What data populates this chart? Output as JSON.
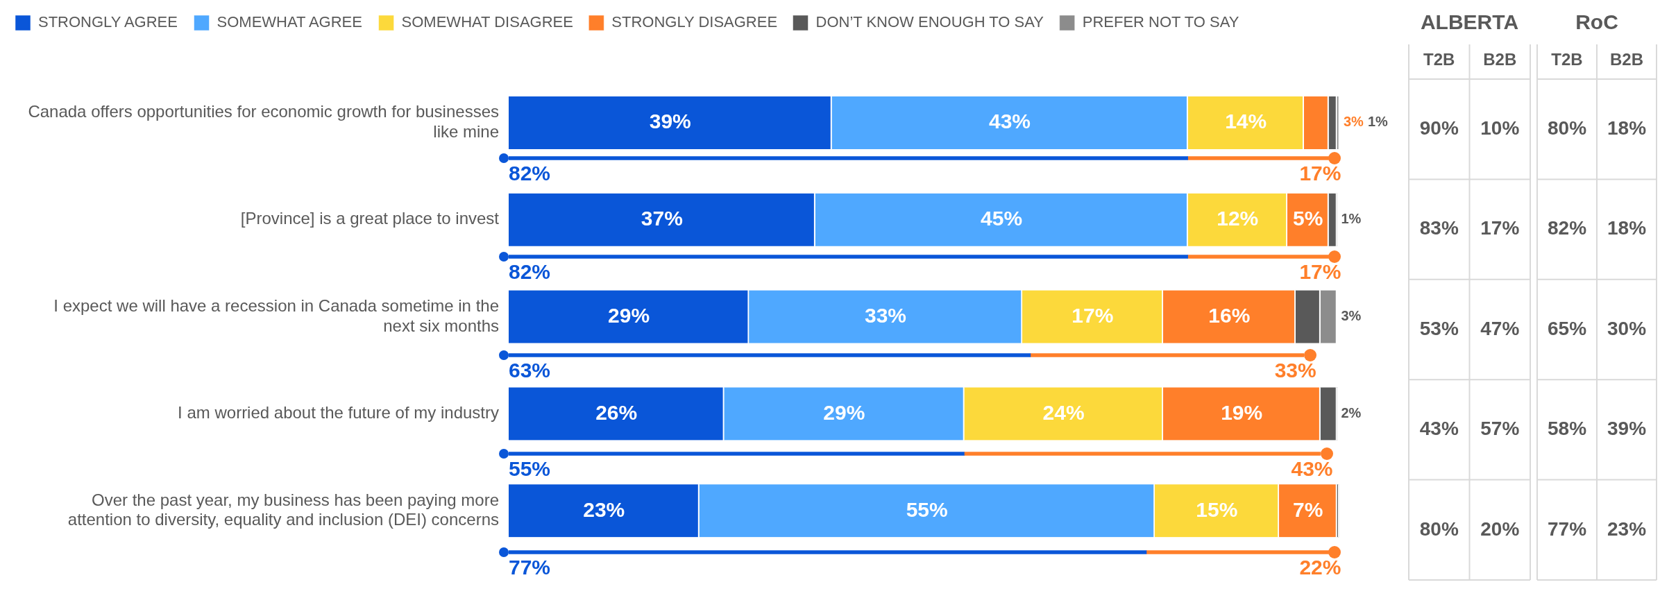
{
  "chart_data": [
    {
      "type": "bar",
      "orientation": "horizontal",
      "stacked": true,
      "legend": "top",
      "categories": [
        "Canada offers opportunities for economic growth for businesses like mine",
        "[Province] is a great place to invest",
        "I expect we will have a recession in Canada sometime in the next six months",
        "I am worried about the future of my industry",
        "Over the past year, my business has been paying more attention to diversity, equality and inclusion (DEI) concerns"
      ],
      "series": [
        {
          "name": "STRONGLY AGREE",
          "color": "#0a56d8",
          "values": [
            39,
            37,
            29,
            26,
            23
          ],
          "value_labels": [
            "39%",
            "37%",
            "29%",
            "26%",
            "23%"
          ]
        },
        {
          "name": "SOMEWHAT AGREE",
          "color": "#4fa8ff",
          "values": [
            43,
            45,
            33,
            29,
            55
          ],
          "value_labels": [
            "43%",
            "45%",
            "33%",
            "29%",
            "55%"
          ]
        },
        {
          "name": "SOMEWHAT DISAGREE",
          "color": "#fcd93b",
          "values": [
            14,
            12,
            17,
            24,
            15
          ],
          "value_labels": [
            "14%",
            "12%",
            "17%",
            "24%",
            "15%"
          ]
        },
        {
          "name": "STRONGLY DISAGREE",
          "color": "#ff7f2a",
          "values": [
            3,
            5,
            16,
            19,
            7
          ],
          "value_labels": [
            "3%",
            "5%",
            "16%",
            "19%",
            "7%"
          ]
        },
        {
          "name": "DON’T KNOW ENOUGH TO SAY",
          "color": "#595959",
          "values": [
            1,
            1,
            3,
            2,
            0.2
          ],
          "value_labels": [
            "1%",
            "1%",
            "3%",
            "2%",
            null
          ]
        },
        {
          "name": "PREFER NOT TO SAY",
          "color": "#8c8c8c",
          "values": [
            0.3,
            0,
            2,
            0,
            0
          ],
          "value_labels": [
            null,
            null,
            null,
            null,
            null
          ]
        }
      ]
    },
    {
      "type": "bar",
      "orientation": "horizontal",
      "stacked": true,
      "tick_labels": false,
      "categories": [
        null,
        null,
        null,
        null,
        null
      ],
      "series": [
        {
          "color": "#0a56d8",
          "values": [
            82,
            82,
            63,
            55,
            77
          ],
          "value_labels": [
            "82%",
            "82%",
            "63%",
            "55%",
            "77%"
          ]
        },
        {
          "color": "#ff7f2a",
          "values": [
            17,
            17,
            33,
            43,
            22
          ],
          "value_labels": [
            "17%",
            "17%",
            "33%",
            "43%",
            "22%"
          ]
        }
      ]
    },
    {
      "type": "heatmap",
      "title": "ALBERTA",
      "grid": true,
      "categories": [
        "T2B",
        "B2B"
      ],
      "y_categories": [
        null,
        null,
        null,
        null,
        null
      ],
      "cells": [
        [
          90,
          10
        ],
        [
          83,
          17
        ],
        [
          53,
          47
        ],
        [
          43,
          57
        ],
        [
          80,
          20
        ]
      ],
      "cell_labels": [
        [
          "90%",
          "10%"
        ],
        [
          "83%",
          "17%"
        ],
        [
          "53%",
          "47%"
        ],
        [
          "43%",
          "57%"
        ],
        [
          "80%",
          "20%"
        ]
      ]
    },
    {
      "type": "heatmap",
      "title": "RoC",
      "grid": true,
      "categories": [
        "T2B",
        "B2B"
      ],
      "y_categories": [
        null,
        null,
        null,
        null,
        null
      ],
      "cells": [
        [
          80,
          18
        ],
        [
          82,
          18
        ],
        [
          65,
          30
        ],
        [
          58,
          39
        ],
        [
          77,
          23
        ]
      ],
      "cell_labels": [
        [
          "80%",
          "18%"
        ],
        [
          "82%",
          "18%"
        ],
        [
          "65%",
          "30%"
        ],
        [
          "58%",
          "39%"
        ],
        [
          "77%",
          "23%"
        ]
      ]
    }
  ]
}
